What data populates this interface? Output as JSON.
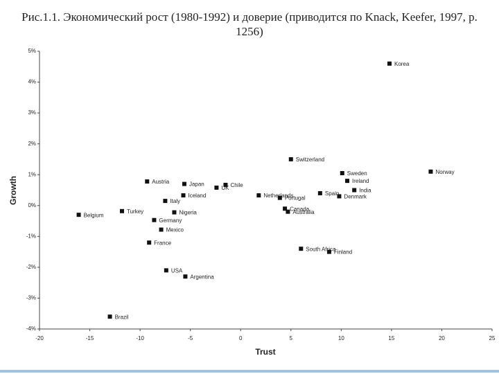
{
  "chart_data": {
    "type": "scatter",
    "title": "Рис.1.1.  Экономический рост (1980-1992) и доверие (приводится по Knack, Keefer, 1997, р. 1256)",
    "x_label": "Trust",
    "y_label": "Growth",
    "color": "#111",
    "labels": [
      "Korea",
      "Switzerland",
      "Norway",
      "Sweden",
      "Ireland",
      "India",
      "Denmark",
      "Spain",
      "Netherlands",
      "Portugal",
      "Canada",
      "Australia",
      "South Africa",
      "Finland",
      "Chile",
      "UK",
      "Japan",
      "Iceland",
      "Austria",
      "Italy",
      "Nigeria",
      "Turkey",
      "Belgium",
      "Germany",
      "Mexico",
      "France",
      "USA",
      "Argentina",
      "Brazil"
    ],
    "x": [
      14.8,
      5.0,
      18.9,
      10.1,
      10.6,
      11.3,
      9.8,
      7.9,
      1.8,
      3.9,
      4.4,
      4.7,
      6.0,
      8.8,
      -1.5,
      -2.4,
      -5.6,
      -5.7,
      -9.3,
      -7.5,
      -6.6,
      -11.8,
      -16.1,
      -8.6,
      -7.9,
      -9.1,
      -7.4,
      -5.5,
      -13.0
    ],
    "values": [
      4.6,
      1.5,
      1.1,
      1.05,
      0.8,
      0.5,
      0.3,
      0.4,
      0.33,
      0.25,
      -0.1,
      -0.2,
      -1.4,
      -1.5,
      0.67,
      0.58,
      0.7,
      0.33,
      0.78,
      0.15,
      -0.22,
      -0.18,
      -0.3,
      -0.47,
      -0.78,
      -1.2,
      -2.1,
      -2.3,
      -3.6
    ],
    "xlim": [
      -20,
      25
    ],
    "xticks": [
      -20,
      -15,
      -10,
      -5,
      0,
      5,
      10,
      15,
      20,
      25
    ],
    "ylim": [
      -4,
      5
    ],
    "yticks": [
      {
        "value": -4,
        "label": "-4%"
      },
      {
        "value": -3,
        "label": "-3%"
      },
      {
        "value": -2,
        "label": "-2%"
      },
      {
        "value": -1,
        "label": "-1%"
      },
      {
        "value": 0,
        "label": "0%"
      },
      {
        "value": 1,
        "label": "1%"
      },
      {
        "value": 2,
        "label": "2%"
      },
      {
        "value": 3,
        "label": "3%"
      },
      {
        "value": 4,
        "label": "4%"
      },
      {
        "value": 5,
        "label": "5%"
      }
    ]
  }
}
